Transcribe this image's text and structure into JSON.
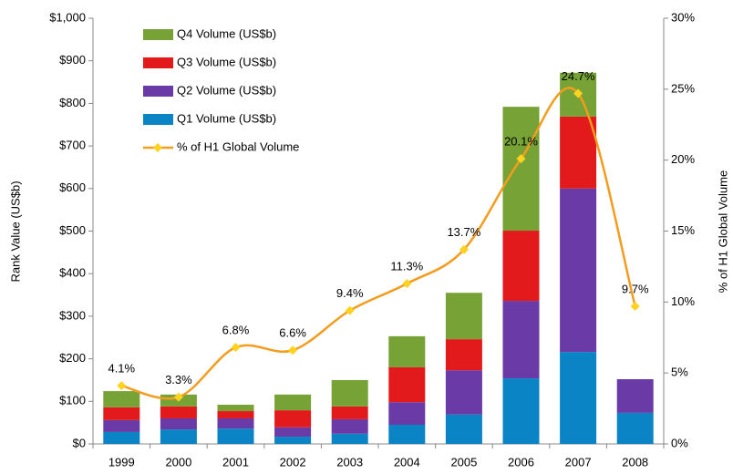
{
  "chart_data": {
    "type": "bar",
    "stacked": true,
    "categories": [
      "1999",
      "2000",
      "2001",
      "2002",
      "2003",
      "2004",
      "2005",
      "2006",
      "2007",
      "2008"
    ],
    "series": [
      {
        "name": "Q1 Volume (US$b)",
        "color": "#0b84c6",
        "values": [
          28,
          34,
          36,
          17,
          24,
          45,
          69,
          154,
          216,
          73
        ]
      },
      {
        "name": "Q2 Volume (US$b)",
        "color": "#6a3aa6",
        "values": [
          28,
          26,
          24,
          22,
          34,
          53,
          104,
          182,
          384,
          79
        ]
      },
      {
        "name": "Q3 Volume (US$b)",
        "color": "#e31a1c",
        "values": [
          30,
          28,
          17,
          40,
          30,
          82,
          73,
          165,
          169,
          0
        ]
      },
      {
        "name": "Q4 Volume (US$b)",
        "color": "#77a336",
        "values": [
          38,
          28,
          15,
          37,
          62,
          73,
          109,
          291,
          103,
          0
        ]
      },
      {
        "name": "% of H1 Global Volume",
        "type": "line",
        "axis": "y2",
        "color": "#f39c1e",
        "marker_color": "#ffd21f",
        "values": [
          4.1,
          3.3,
          6.8,
          6.6,
          9.4,
          11.3,
          13.7,
          20.1,
          24.7,
          9.7
        ],
        "value_labels": [
          "4.1%",
          "3.3%",
          "6.8%",
          "6.6%",
          "9.4%",
          "11.3%",
          "13.7%",
          "20.1%",
          "24.7%",
          "9.7%"
        ]
      }
    ],
    "legend_order": [
      3,
      2,
      1,
      0,
      4
    ],
    "legend": "upper left",
    "ylabel": "Rank Value (US$b)",
    "y2label": "% of H1 Global Volume",
    "ylim": [
      0,
      1000
    ],
    "yticks": [
      {
        "value": 0,
        "label": "$0"
      },
      {
        "value": 100,
        "label": "$100"
      },
      {
        "value": 200,
        "label": "$200"
      },
      {
        "value": 300,
        "label": "$300"
      },
      {
        "value": 400,
        "label": "$400"
      },
      {
        "value": 500,
        "label": "$500"
      },
      {
        "value": 600,
        "label": "$600"
      },
      {
        "value": 700,
        "label": "$700"
      },
      {
        "value": 800,
        "label": "$800"
      },
      {
        "value": 900,
        "label": "$900"
      },
      {
        "value": 1000,
        "label": "$1,000"
      }
    ],
    "y2lim": [
      0,
      30
    ],
    "y2ticks": [
      {
        "value": 0,
        "label": "0%"
      },
      {
        "value": 5,
        "label": "5%"
      },
      {
        "value": 10,
        "label": "10%"
      },
      {
        "value": 15,
        "label": "15%"
      },
      {
        "value": 20,
        "label": "20%"
      },
      {
        "value": 25,
        "label": "25%"
      },
      {
        "value": 30,
        "label": "30%"
      }
    ]
  }
}
